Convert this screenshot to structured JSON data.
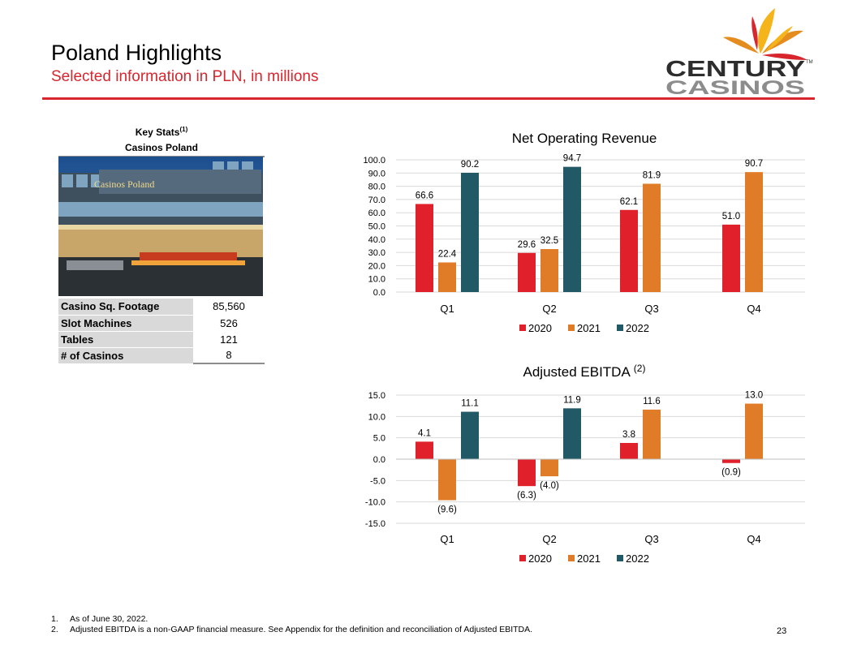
{
  "header": {
    "title": "Poland Highlights",
    "subtitle": "Selected information in PLN, in millions"
  },
  "logo": {
    "line1": "CENTURY",
    "line2": "CASINOS",
    "tm": "TM"
  },
  "photo": {
    "sign": "Casinos Poland"
  },
  "key_stats": {
    "title": "Key Stats",
    "title_note": "(1)",
    "subtitle": "Casinos Poland",
    "rows": [
      {
        "label": "Casino Sq. Footage",
        "value": "85,560"
      },
      {
        "label": "Slot Machines",
        "value": "526"
      },
      {
        "label": "Tables",
        "value": "121"
      },
      {
        "label": "# of Casinos",
        "value": "8"
      }
    ]
  },
  "colors": {
    "s2020": "#e0212b",
    "s2021": "#e07b27",
    "s2022": "#215967",
    "accent": "#d7262e"
  },
  "chart_data": [
    {
      "type": "bar",
      "title": "Net Operating Revenue",
      "title_note": "",
      "categories": [
        "Q1",
        "Q2",
        "Q3",
        "Q4"
      ],
      "ylim": [
        0,
        100
      ],
      "yticks": [
        0,
        10,
        20,
        30,
        40,
        50,
        60,
        70,
        80,
        90,
        100
      ],
      "ytick_labels": [
        "0.0",
        "10.0",
        "20.0",
        "30.0",
        "40.0",
        "50.0",
        "60.0",
        "70.0",
        "80.0",
        "90.0",
        "100.0"
      ],
      "grid": true,
      "legend": "bottom",
      "series": [
        {
          "name": "2020",
          "values": [
            66.6,
            29.6,
            62.1,
            51.0
          ],
          "labels": [
            "66.6",
            "29.6",
            "62.1",
            "51.0"
          ]
        },
        {
          "name": "2021",
          "values": [
            22.4,
            32.5,
            81.9,
            90.7
          ],
          "labels": [
            "22.4",
            "32.5",
            "81.9",
            "90.7"
          ]
        },
        {
          "name": "2022",
          "values": [
            90.2,
            94.7,
            null,
            null
          ],
          "labels": [
            "90.2",
            "94.7",
            "",
            ""
          ]
        }
      ]
    },
    {
      "type": "bar",
      "title": "Adjusted EBITDA",
      "title_note": "(2)",
      "categories": [
        "Q1",
        "Q2",
        "Q3",
        "Q4"
      ],
      "ylim": [
        -15,
        15
      ],
      "yticks": [
        -15,
        -10,
        -5,
        0,
        5,
        10,
        15
      ],
      "ytick_labels": [
        "-15.0",
        "-10.0",
        "-5.0",
        "0.0",
        "5.0",
        "10.0",
        "15.0"
      ],
      "grid": true,
      "legend": "bottom",
      "series": [
        {
          "name": "2020",
          "values": [
            4.1,
            -6.3,
            3.8,
            -0.9
          ],
          "labels": [
            "4.1",
            "(6.3)",
            "3.8",
            "(0.9)"
          ]
        },
        {
          "name": "2021",
          "values": [
            -9.6,
            -4.0,
            11.6,
            13.0
          ],
          "labels": [
            "(9.6)",
            "(4.0)",
            "11.6",
            "13.0"
          ]
        },
        {
          "name": "2022",
          "values": [
            11.1,
            11.9,
            null,
            null
          ],
          "labels": [
            "11.1",
            "11.9",
            "",
            ""
          ]
        }
      ]
    }
  ],
  "footnotes": [
    {
      "num": "1.",
      "text": "As of June 30, 2022."
    },
    {
      "num": "2.",
      "text": "Adjusted EBITDA is a non-GAAP financial measure. See Appendix for the definition and reconciliation of Adjusted EBITDA."
    }
  ],
  "page_number": "23"
}
